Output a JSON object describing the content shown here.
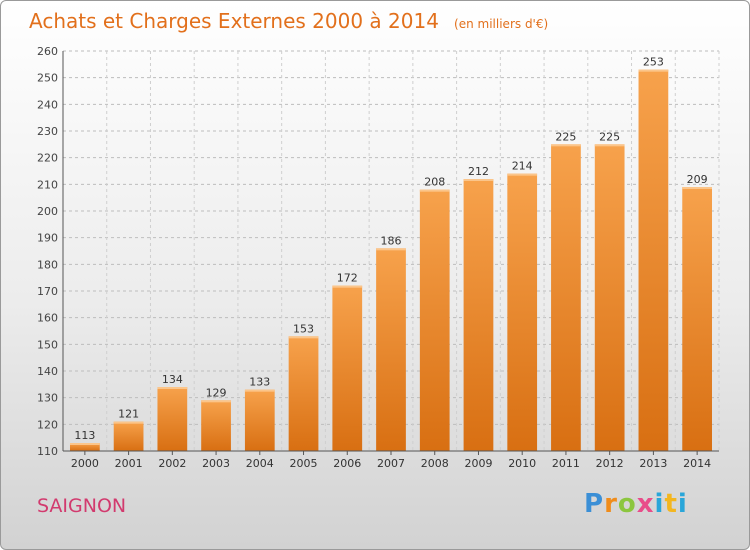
{
  "header": {
    "title": "Achats et Charges Externes 2000 à 2014",
    "subtitle": "(en milliers d'€)"
  },
  "footer": {
    "city": "SAIGNON",
    "logo": "Proxiti",
    "logo_letters": [
      "P",
      "r",
      "o",
      "x",
      "i",
      "t",
      "i"
    ]
  },
  "colors": {
    "title": "#e2701c",
    "bar_light": "#f7a24c",
    "bar_dark": "#d86f12",
    "city": "#d23a6e"
  },
  "chart_data": {
    "type": "bar",
    "title": "Achats et Charges Externes 2000 à 2014",
    "subtitle": "(en milliers d'€)",
    "categories": [
      "2000",
      "2001",
      "2002",
      "2003",
      "2004",
      "2005",
      "2006",
      "2007",
      "2008",
      "2009",
      "2010",
      "2011",
      "2012",
      "2013",
      "2014"
    ],
    "values": [
      113,
      121,
      134,
      129,
      133,
      153,
      172,
      186,
      208,
      212,
      214,
      225,
      225,
      253,
      209
    ],
    "ylim": [
      110,
      260
    ],
    "yticks": [
      110,
      120,
      130,
      140,
      150,
      160,
      170,
      180,
      190,
      200,
      210,
      220,
      230,
      240,
      250,
      260
    ],
    "grid": true,
    "legend": "none",
    "xlabel": "",
    "ylabel": ""
  }
}
